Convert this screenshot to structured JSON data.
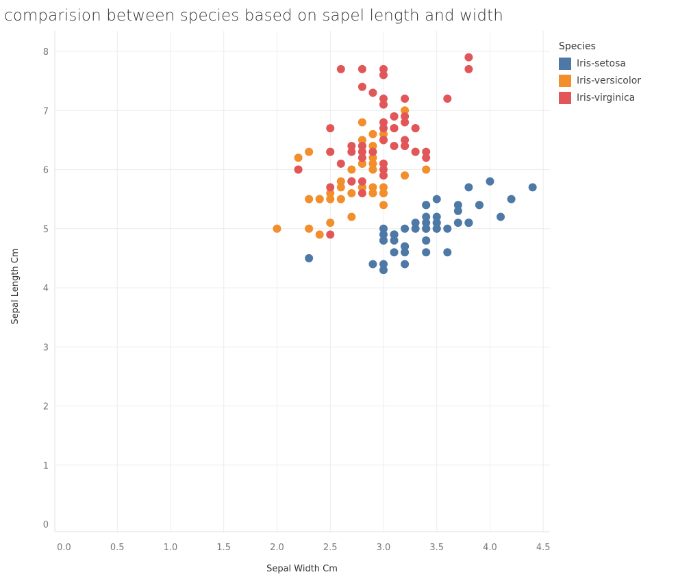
{
  "chart_data": {
    "type": "scatter",
    "title": "comparision between species based on sapel length and width",
    "xlabel": "Sepal Width Cm",
    "ylabel": "Sepal Length Cm",
    "xlim": [
      0,
      4.5
    ],
    "ylim": [
      0,
      8
    ],
    "xticks": [
      "0.0",
      "0.5",
      "1.0",
      "1.5",
      "2.0",
      "2.5",
      "3.0",
      "3.5",
      "4.0",
      "4.5"
    ],
    "yticks": [
      "0",
      "1",
      "2",
      "3",
      "4",
      "5",
      "6",
      "7",
      "8"
    ],
    "grid": true,
    "legend_title": "Species",
    "legend_position": "top-right",
    "series": [
      {
        "name": "Iris-setosa",
        "color": "#4e79a7",
        "points": [
          [
            3.5,
            5.1
          ],
          [
            3.0,
            4.9
          ],
          [
            3.2,
            4.7
          ],
          [
            3.1,
            4.6
          ],
          [
            3.6,
            5.0
          ],
          [
            3.9,
            5.4
          ],
          [
            3.4,
            4.6
          ],
          [
            3.4,
            5.0
          ],
          [
            2.9,
            4.4
          ],
          [
            3.1,
            4.9
          ],
          [
            3.7,
            5.4
          ],
          [
            3.4,
            4.8
          ],
          [
            3.0,
            4.8
          ],
          [
            3.0,
            4.3
          ],
          [
            4.0,
            5.8
          ],
          [
            4.4,
            5.7
          ],
          [
            3.9,
            5.4
          ],
          [
            3.5,
            5.1
          ],
          [
            3.8,
            5.7
          ],
          [
            3.8,
            5.1
          ],
          [
            3.4,
            5.4
          ],
          [
            3.7,
            5.1
          ],
          [
            3.6,
            4.6
          ],
          [
            3.3,
            5.1
          ],
          [
            3.4,
            4.8
          ],
          [
            3.0,
            5.0
          ],
          [
            3.4,
            5.0
          ],
          [
            3.5,
            5.2
          ],
          [
            3.4,
            5.2
          ],
          [
            3.2,
            4.7
          ],
          [
            3.1,
            4.8
          ],
          [
            3.4,
            5.4
          ],
          [
            4.1,
            5.2
          ],
          [
            4.2,
            5.5
          ],
          [
            3.1,
            4.9
          ],
          [
            3.2,
            5.0
          ],
          [
            3.5,
            5.5
          ],
          [
            3.1,
            4.9
          ],
          [
            3.0,
            4.4
          ],
          [
            3.4,
            5.1
          ],
          [
            3.5,
            5.0
          ],
          [
            2.3,
            4.5
          ],
          [
            3.2,
            4.4
          ],
          [
            3.5,
            5.0
          ],
          [
            3.8,
            5.1
          ],
          [
            3.0,
            4.8
          ],
          [
            3.8,
            5.1
          ],
          [
            3.2,
            4.6
          ],
          [
            3.7,
            5.3
          ],
          [
            3.3,
            5.0
          ]
        ]
      },
      {
        "name": "Iris-versicolor",
        "color": "#f28e2b",
        "points": [
          [
            3.2,
            7.0
          ],
          [
            3.2,
            6.4
          ],
          [
            3.1,
            6.9
          ],
          [
            2.3,
            5.5
          ],
          [
            2.8,
            6.5
          ],
          [
            2.8,
            5.7
          ],
          [
            3.3,
            6.3
          ],
          [
            2.4,
            4.9
          ],
          [
            2.9,
            6.6
          ],
          [
            2.7,
            5.2
          ],
          [
            2.0,
            5.0
          ],
          [
            3.0,
            5.9
          ],
          [
            2.2,
            6.0
          ],
          [
            2.9,
            6.1
          ],
          [
            2.9,
            5.6
          ],
          [
            3.1,
            6.7
          ],
          [
            3.0,
            5.6
          ],
          [
            2.7,
            5.8
          ],
          [
            2.2,
            6.2
          ],
          [
            2.5,
            5.6
          ],
          [
            3.2,
            5.9
          ],
          [
            2.8,
            6.1
          ],
          [
            2.5,
            6.3
          ],
          [
            2.8,
            6.1
          ],
          [
            2.9,
            6.4
          ],
          [
            3.0,
            6.6
          ],
          [
            2.8,
            6.8
          ],
          [
            3.0,
            6.7
          ],
          [
            2.9,
            6.0
          ],
          [
            2.6,
            5.7
          ],
          [
            2.4,
            5.5
          ],
          [
            2.4,
            5.5
          ],
          [
            2.7,
            5.8
          ],
          [
            2.7,
            6.0
          ],
          [
            3.0,
            5.4
          ],
          [
            3.4,
            6.0
          ],
          [
            3.1,
            6.7
          ],
          [
            2.3,
            6.3
          ],
          [
            3.0,
            5.6
          ],
          [
            2.5,
            5.5
          ],
          [
            2.6,
            5.5
          ],
          [
            3.0,
            6.1
          ],
          [
            2.6,
            5.8
          ],
          [
            2.3,
            5.0
          ],
          [
            2.7,
            5.6
          ],
          [
            3.0,
            5.7
          ],
          [
            2.9,
            5.7
          ],
          [
            2.9,
            6.2
          ],
          [
            2.5,
            5.1
          ],
          [
            2.8,
            5.7
          ]
        ]
      },
      {
        "name": "Iris-virginica",
        "color": "#e15759",
        "points": [
          [
            3.3,
            6.3
          ],
          [
            2.7,
            5.8
          ],
          [
            3.0,
            7.1
          ],
          [
            2.9,
            6.3
          ],
          [
            3.0,
            6.5
          ],
          [
            3.0,
            7.6
          ],
          [
            2.5,
            4.9
          ],
          [
            2.9,
            7.3
          ],
          [
            2.5,
            6.7
          ],
          [
            3.6,
            7.2
          ],
          [
            3.2,
            6.5
          ],
          [
            2.7,
            6.4
          ],
          [
            3.0,
            6.8
          ],
          [
            2.5,
            5.7
          ],
          [
            2.8,
            5.8
          ],
          [
            3.2,
            6.4
          ],
          [
            3.0,
            6.5
          ],
          [
            3.8,
            7.7
          ],
          [
            2.6,
            7.7
          ],
          [
            2.2,
            6.0
          ],
          [
            3.2,
            6.9
          ],
          [
            2.8,
            5.6
          ],
          [
            2.8,
            7.7
          ],
          [
            2.7,
            6.3
          ],
          [
            3.3,
            6.7
          ],
          [
            3.2,
            7.2
          ],
          [
            2.8,
            6.2
          ],
          [
            3.0,
            6.1
          ],
          [
            2.8,
            6.4
          ],
          [
            3.0,
            7.2
          ],
          [
            2.8,
            7.4
          ],
          [
            3.8,
            7.9
          ],
          [
            2.8,
            6.4
          ],
          [
            2.8,
            6.3
          ],
          [
            2.6,
            6.1
          ],
          [
            3.0,
            7.7
          ],
          [
            3.4,
            6.3
          ],
          [
            3.1,
            6.4
          ],
          [
            3.0,
            6.0
          ],
          [
            3.1,
            6.9
          ],
          [
            3.1,
            6.7
          ],
          [
            3.1,
            6.9
          ],
          [
            2.7,
            5.8
          ],
          [
            3.2,
            6.8
          ],
          [
            3.3,
            6.7
          ],
          [
            3.0,
            6.7
          ],
          [
            2.5,
            6.3
          ],
          [
            3.0,
            6.5
          ],
          [
            3.4,
            6.2
          ],
          [
            3.0,
            5.9
          ]
        ]
      }
    ]
  }
}
